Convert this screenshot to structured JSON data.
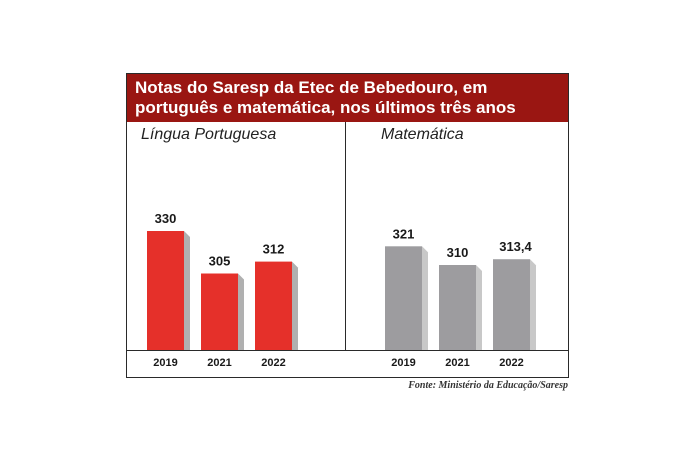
{
  "chart_data": [
    {
      "type": "bar",
      "title": "Notas do Saresp da Etec de Bebedouro, em português e matemática, nos últimos três anos",
      "title_lines": [
        "Notas do Saresp da Etec de Bebedouro, em",
        "português e matemática, nos últimos três anos"
      ],
      "panel_title": "Língua Portuguesa",
      "categories": [
        "2019",
        "2021",
        "2022"
      ],
      "values": [
        330,
        305,
        312
      ],
      "value_labels": [
        "330",
        "305",
        "312"
      ],
      "color": "#e5302a",
      "shadow_color": "#b0b0b0",
      "ylim": [
        260,
        345
      ],
      "grid": false,
      "legend": "none"
    },
    {
      "type": "bar",
      "panel_title": "Matemática",
      "categories": [
        "2019",
        "2021",
        "2022"
      ],
      "values": [
        321,
        310,
        313.4
      ],
      "value_labels": [
        "321",
        "310",
        "313,4"
      ],
      "color": "#9d9c9f",
      "shadow_color": "#c8c8c8",
      "ylim": [
        260,
        345
      ],
      "grid": false,
      "legend": "none"
    }
  ],
  "source": "Fonte: Ministério da Educação/Saresp",
  "colors": {
    "title_bg": "#9a1612",
    "title_text": "#ffffff",
    "border": "#2a2a2a"
  }
}
